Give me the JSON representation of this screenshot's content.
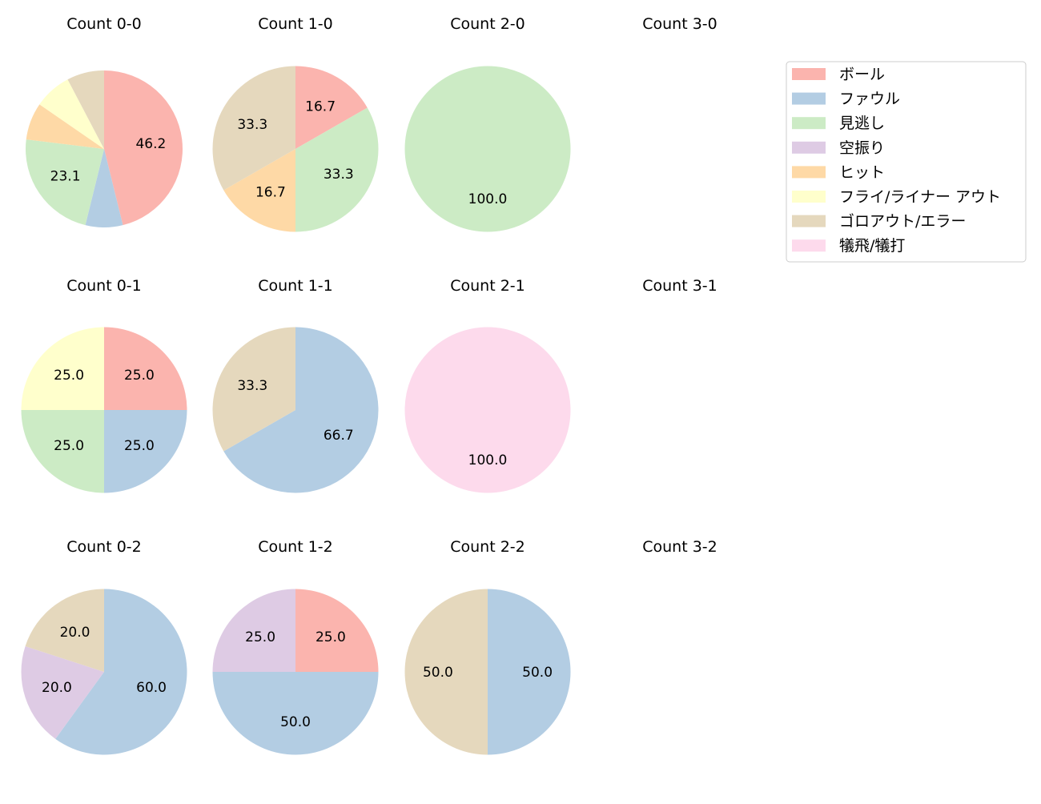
{
  "chart_data": {
    "type": "pie",
    "categories": [
      "ボール",
      "ファウル",
      "見逃し",
      "空振り",
      "ヒット",
      "フライ/ライナー アウト",
      "ゴロアウト/エラー",
      "犠飛/犠打"
    ],
    "colors": [
      "#fbb4ae",
      "#b3cde3",
      "#ccebc5",
      "#decbe4",
      "#fed9a6",
      "#ffffcc",
      "#e5d8bd",
      "#fddaec"
    ],
    "start_angle": "top",
    "direction": "clockwise",
    "label_threshold_percent": 10,
    "legend_position": "top-right",
    "pies": [
      {
        "title": "Count 0-0",
        "values": [
          46.2,
          7.7,
          23.1,
          0,
          7.7,
          7.7,
          7.7,
          0
        ]
      },
      {
        "title": "Count 1-0",
        "values": [
          16.7,
          0,
          33.3,
          0,
          16.7,
          0,
          33.3,
          0
        ]
      },
      {
        "title": "Count 2-0",
        "values": [
          0,
          0,
          100.0,
          0,
          0,
          0,
          0,
          0
        ]
      },
      {
        "title": "Count 3-0",
        "values": []
      },
      {
        "title": "Count 0-1",
        "values": [
          25.0,
          25.0,
          25.0,
          0,
          0,
          25.0,
          0,
          0
        ]
      },
      {
        "title": "Count 1-1",
        "values": [
          0,
          66.7,
          0,
          0,
          0,
          0,
          33.3,
          0
        ]
      },
      {
        "title": "Count 2-1",
        "values": [
          0,
          0,
          0,
          0,
          0,
          0,
          0,
          100.0
        ]
      },
      {
        "title": "Count 3-1",
        "values": []
      },
      {
        "title": "Count 0-2",
        "values": [
          0,
          60.0,
          0,
          20.0,
          0,
          0,
          20.0,
          0
        ]
      },
      {
        "title": "Count 1-2",
        "values": [
          25.0,
          50.0,
          0,
          25.0,
          0,
          0,
          0,
          0
        ]
      },
      {
        "title": "Count 2-2",
        "values": [
          0,
          50.0,
          0,
          0,
          0,
          0,
          50.0,
          0
        ]
      },
      {
        "title": "Count 3-2",
        "values": []
      }
    ]
  }
}
